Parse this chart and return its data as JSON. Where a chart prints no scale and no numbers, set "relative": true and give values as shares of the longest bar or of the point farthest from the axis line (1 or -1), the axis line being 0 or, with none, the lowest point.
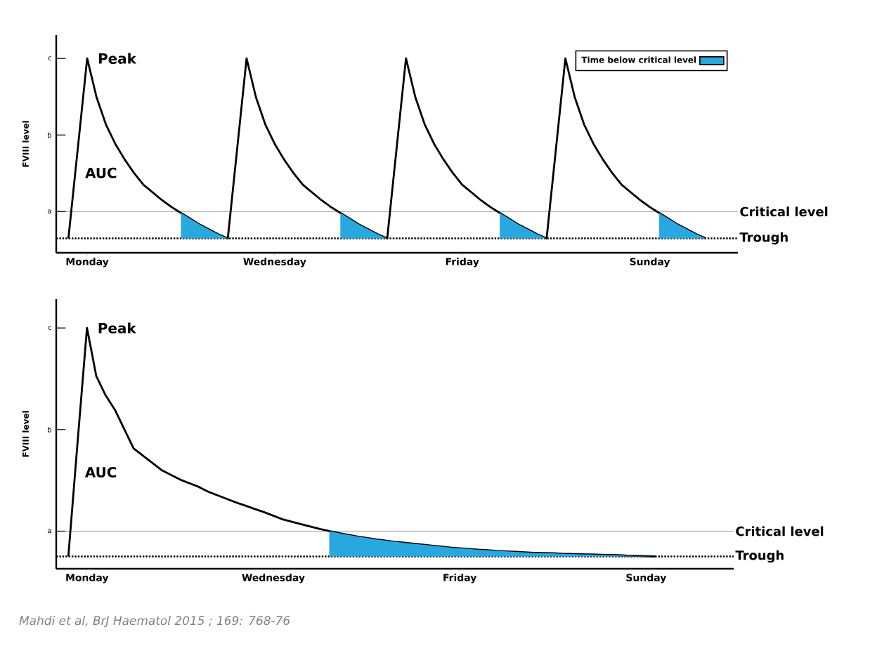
{
  "chart_data": [
    {
      "type": "line",
      "ylabel": "FVIII level",
      "relative": true,
      "categories": [
        null,
        null,
        "Monday",
        null,
        null,
        null,
        null,
        null,
        null,
        null,
        null,
        null,
        null,
        null,
        null,
        null,
        null,
        null,
        null,
        null,
        null,
        null,
        "Wednesday",
        null,
        null,
        null,
        null,
        null,
        null,
        null,
        null,
        null,
        null,
        null,
        null,
        null,
        null,
        null,
        null,
        null,
        null,
        null,
        "Friday",
        null,
        null,
        null,
        null,
        null,
        null,
        null,
        null,
        null,
        null,
        null,
        null,
        null,
        null,
        null,
        null,
        null,
        null,
        null,
        "Sunday",
        null,
        null,
        null,
        null,
        null,
        null,
        null,
        null
      ],
      "legend": "top right",
      "series": [
        {
          "color": "#000000",
          "values": [
            0.074,
            0.537,
            1,
            0.8,
            0.66,
            0.56,
            0.48,
            0.41,
            0.35,
            0.31,
            0.27,
            0.235,
            0.205,
            0.175,
            0.145,
            0.12,
            0.095,
            0.074,
            0.537,
            1,
            0.8,
            0.66,
            0.56,
            0.48,
            0.41,
            0.35,
            0.31,
            0.27,
            0.235,
            0.205,
            0.175,
            0.145,
            0.12,
            0.095,
            0.074,
            0.537,
            1,
            0.8,
            0.66,
            0.56,
            0.48,
            0.41,
            0.35,
            0.31,
            0.27,
            0.235,
            0.205,
            0.175,
            0.145,
            0.12,
            0.095,
            0.074,
            0.537,
            1,
            0.8,
            0.66,
            0.56,
            0.48,
            0.41,
            0.35,
            0.31,
            0.27,
            0.235,
            0.205,
            0.175,
            0.145,
            0.12,
            0.095,
            0.074,
            null,
            null
          ]
        },
        {
          "type": "area",
          "name": "Time below critical level",
          "color": "#29a8e0",
          "values": [
            null,
            null,
            null,
            null,
            null,
            null,
            null,
            null,
            null,
            null,
            null,
            null,
            0.205,
            0.175,
            0.145,
            0.12,
            0.095,
            0.074,
            null,
            null,
            null,
            null,
            null,
            null,
            null,
            null,
            null,
            null,
            null,
            0.205,
            0.175,
            0.145,
            0.12,
            0.095,
            0.074,
            null,
            null,
            null,
            null,
            null,
            null,
            null,
            null,
            null,
            null,
            null,
            0.205,
            0.175,
            0.145,
            0.12,
            0.095,
            0.074,
            null,
            null,
            null,
            null,
            null,
            null,
            null,
            null,
            null,
            null,
            null,
            0.205,
            0.175,
            0.145,
            0.12,
            0.095,
            0.074,
            null,
            null
          ]
        }
      ],
      "ref_lines": [
        {
          "axis": "y",
          "value": 0.212,
          "label": "Critical level",
          "color": "#888888",
          "line_style": "solid"
        },
        {
          "axis": "y",
          "value": 0.074,
          "label": "Trough",
          "color": "#000000",
          "line_style": "dotted"
        }
      ],
      "annotations": [
        {
          "text": "Peak",
          "x": "Monday",
          "y": 1
        },
        "AUC",
        "a",
        "b",
        "c"
      ]
    },
    {
      "type": "line",
      "ylabel": "FVIII level",
      "relative": true,
      "categories": [
        null,
        null,
        "Monday",
        null,
        null,
        null,
        null,
        null,
        null,
        null,
        null,
        null,
        null,
        null,
        null,
        null,
        null,
        null,
        null,
        null,
        null,
        null,
        "Wednesday",
        null,
        null,
        null,
        null,
        null,
        null,
        null,
        null,
        null,
        null,
        null,
        null,
        null,
        null,
        null,
        null,
        null,
        null,
        null,
        "Friday",
        null,
        null,
        null,
        null,
        null,
        null,
        null,
        null,
        null,
        null,
        null,
        null,
        null,
        null,
        null,
        null,
        null,
        null,
        null,
        "Sunday",
        null,
        null,
        null,
        null,
        null,
        null,
        null,
        null
      ],
      "series": [
        {
          "color": "#000000",
          "values": [
            0.051,
            0.53,
            1.0,
            0.8,
            0.72,
            0.66,
            0.58,
            0.5,
            0.47,
            0.44,
            0.41,
            0.39,
            0.37,
            0.355,
            0.34,
            0.32,
            0.305,
            0.29,
            0.275,
            0.262,
            0.248,
            0.235,
            0.22,
            0.205,
            0.195,
            0.185,
            0.175,
            0.165,
            0.156,
            0.148,
            0.141,
            0.134,
            0.128,
            0.122,
            0.117,
            0.112,
            0.108,
            0.104,
            0.1,
            0.096,
            0.092,
            0.088,
            0.085,
            0.082,
            0.079,
            0.077,
            0.074,
            0.072,
            0.07,
            0.068,
            0.066,
            0.065,
            0.064,
            0.062,
            0.061,
            0.06,
            0.059,
            0.058,
            0.057,
            0.056,
            0.054,
            0.053,
            0.052,
            0.051,
            null,
            null,
            null,
            null,
            null,
            null,
            null
          ]
        },
        {
          "type": "area",
          "color": "#29a8e0",
          "values": [
            null,
            null,
            null,
            null,
            null,
            null,
            null,
            null,
            null,
            null,
            null,
            null,
            null,
            null,
            null,
            null,
            null,
            null,
            null,
            null,
            null,
            null,
            null,
            null,
            null,
            null,
            null,
            null,
            0.156,
            0.148,
            0.141,
            0.134,
            0.128,
            0.122,
            0.117,
            0.112,
            0.108,
            0.104,
            0.1,
            0.096,
            0.092,
            0.088,
            0.085,
            0.082,
            0.079,
            0.077,
            0.074,
            0.072,
            0.07,
            0.068,
            0.066,
            0.065,
            0.064,
            0.062,
            0.061,
            0.06,
            0.059,
            0.058,
            0.057,
            0.056,
            0.054,
            0.053,
            0.052,
            0.051,
            null,
            null,
            null,
            null,
            null,
            null,
            null
          ]
        }
      ],
      "ref_lines": [
        {
          "axis": "y",
          "value": 0.156,
          "label": "Critical level",
          "color": "#888888",
          "line_style": "solid"
        },
        {
          "axis": "y",
          "value": 0.051,
          "label": "Trough",
          "color": "#000000",
          "line_style": "dotted"
        }
      ],
      "annotations": [
        {
          "text": "Peak",
          "x": "Monday",
          "y": 1
        },
        "AUC",
        "a",
        "b",
        "c",
        "Mahdi et al, BrJ Haematol 2015 ; 169: 768-76"
      ]
    }
  ]
}
